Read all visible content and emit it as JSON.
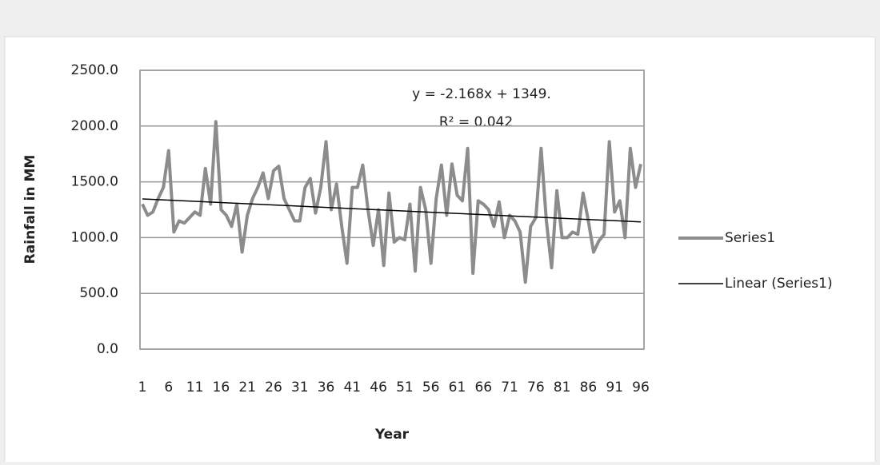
{
  "chart_data": {
    "type": "line",
    "x_label": "Year",
    "y_label": "Rainfall in MM",
    "x": [
      1,
      2,
      3,
      4,
      5,
      6,
      7,
      8,
      9,
      10,
      11,
      12,
      13,
      14,
      15,
      16,
      17,
      18,
      19,
      20,
      21,
      22,
      23,
      24,
      25,
      26,
      27,
      28,
      29,
      30,
      31,
      32,
      33,
      34,
      35,
      36,
      37,
      38,
      39,
      40,
      41,
      42,
      43,
      44,
      45,
      46,
      47,
      48,
      49,
      50,
      51,
      52,
      53,
      54,
      55,
      56,
      57,
      58,
      59,
      60,
      61,
      62,
      63,
      64,
      65,
      66,
      67,
      68,
      69,
      70,
      71,
      72,
      73,
      74,
      75,
      76,
      77,
      78,
      79,
      80,
      81,
      82,
      83,
      84,
      85,
      86,
      87,
      88,
      89,
      90,
      91,
      92,
      93,
      94,
      95,
      96
    ],
    "series": [
      {
        "name": "Series1",
        "color": "#8c8c8c",
        "values": [
          1300,
          1200,
          1230,
          1350,
          1450,
          1780,
          1050,
          1150,
          1130,
          1180,
          1230,
          1200,
          1620,
          1300,
          2040,
          1250,
          1200,
          1100,
          1300,
          870,
          1200,
          1350,
          1450,
          1580,
          1350,
          1600,
          1640,
          1350,
          1250,
          1150,
          1150,
          1450,
          1530,
          1220,
          1450,
          1860,
          1250,
          1480,
          1100,
          770,
          1450,
          1450,
          1650,
          1250,
          930,
          1250,
          750,
          1400,
          960,
          1000,
          980,
          1300,
          700,
          1450,
          1250,
          770,
          1350,
          1650,
          1200,
          1660,
          1380,
          1330,
          1800,
          680,
          1330,
          1300,
          1250,
          1100,
          1320,
          1000,
          1200,
          1150,
          1050,
          600,
          1100,
          1180,
          1800,
          1150,
          730,
          1420,
          1000,
          1000,
          1050,
          1030,
          1400,
          1150,
          870,
          970,
          1030,
          1860,
          1230,
          1330,
          1000,
          1800,
          1450,
          1660
        ]
      }
    ],
    "trendline": {
      "name": "Linear (Series1)",
      "slope": -2.168,
      "intercept": 1349,
      "color": "#000000",
      "equation": "y = -2.168x + 1349.",
      "r_squared": "R² = 0.042"
    },
    "xlim": [
      1,
      96
    ],
    "xticks": [
      1,
      6,
      11,
      16,
      21,
      26,
      31,
      36,
      41,
      46,
      51,
      56,
      61,
      66,
      71,
      76,
      81,
      86,
      91,
      96
    ],
    "ylim": [
      0,
      2500
    ],
    "yticks": [
      {
        "value": 0,
        "label": "0.0"
      },
      {
        "value": 500,
        "label": "500.0"
      },
      {
        "value": 1000,
        "label": "1000.0"
      },
      {
        "value": 1500,
        "label": "1500.0"
      },
      {
        "value": 2000,
        "label": "2000.0"
      },
      {
        "value": 2500,
        "label": "2500.0"
      }
    ],
    "grid": true
  }
}
